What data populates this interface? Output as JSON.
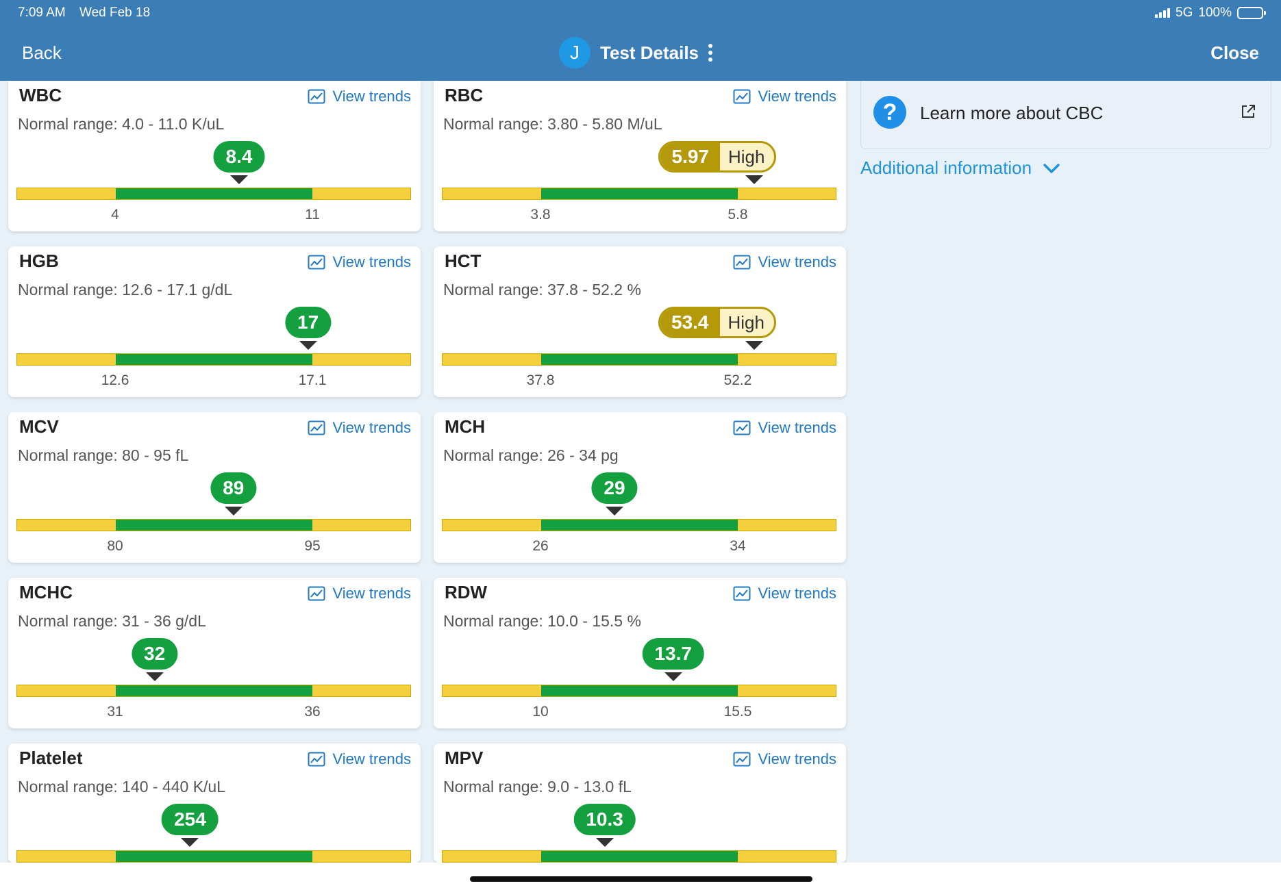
{
  "status_bar": {
    "time": "7:09 AM",
    "date": "Wed Feb 18",
    "network": "5G",
    "battery": "100%"
  },
  "nav": {
    "back_label": "Back",
    "avatar_initial": "J",
    "title": "Test Details",
    "close_label": "Close"
  },
  "colors": {
    "header": "#3b7db7",
    "normal": "#14a03f",
    "out_of_range": "#f4d03f",
    "high_badge": "#b49a0a",
    "link": "#1f78c1"
  },
  "view_trends_label": "View trends",
  "range_prefix": "Normal range: ",
  "tests": [
    {
      "name": "WBC",
      "range": "4.0 - 11.0 K/uL",
      "low": "4",
      "high": "11",
      "low_num": 4.0,
      "high_num": 11.0,
      "value": "8.4",
      "value_num": 8.4,
      "flag": ""
    },
    {
      "name": "RBC",
      "range": "3.80 - 5.80 M/uL",
      "low": "3.8",
      "high": "5.8",
      "low_num": 3.8,
      "high_num": 5.8,
      "value": "5.97",
      "value_num": 5.97,
      "flag": "High"
    },
    {
      "name": "HGB",
      "range": "12.6 - 17.1 g/dL",
      "low": "12.6",
      "high": "17.1",
      "low_num": 12.6,
      "high_num": 17.1,
      "value": "17",
      "value_num": 17.0,
      "flag": ""
    },
    {
      "name": "HCT",
      "range": "37.8 - 52.2 %",
      "low": "37.8",
      "high": "52.2",
      "low_num": 37.8,
      "high_num": 52.2,
      "value": "53.4",
      "value_num": 53.4,
      "flag": "High"
    },
    {
      "name": "MCV",
      "range": "80 - 95 fL",
      "low": "80",
      "high": "95",
      "low_num": 80,
      "high_num": 95,
      "value": "89",
      "value_num": 89,
      "flag": ""
    },
    {
      "name": "MCH",
      "range": "26 - 34 pg",
      "low": "26",
      "high": "34",
      "low_num": 26,
      "high_num": 34,
      "value": "29",
      "value_num": 29,
      "flag": ""
    },
    {
      "name": "MCHC",
      "range": "31 - 36 g/dL",
      "low": "31",
      "high": "36",
      "low_num": 31,
      "high_num": 36,
      "value": "32",
      "value_num": 32,
      "flag": ""
    },
    {
      "name": "RDW",
      "range": "10.0 - 15.5 %",
      "low": "10",
      "high": "15.5",
      "low_num": 10.0,
      "high_num": 15.5,
      "value": "13.7",
      "value_num": 13.7,
      "flag": ""
    },
    {
      "name": "Platelet",
      "range": "140 - 440 K/uL",
      "low": "",
      "high": "",
      "low_num": 140,
      "high_num": 440,
      "value": "254",
      "value_num": 254,
      "flag": ""
    },
    {
      "name": "MPV",
      "range": "9.0 - 13.0 fL",
      "low": "",
      "high": "",
      "low_num": 9.0,
      "high_num": 13.0,
      "value": "10.3",
      "value_num": 10.3,
      "flag": ""
    }
  ],
  "learn_more": {
    "label": "Learn more about CBC"
  },
  "additional_info": {
    "label": "Additional information"
  }
}
